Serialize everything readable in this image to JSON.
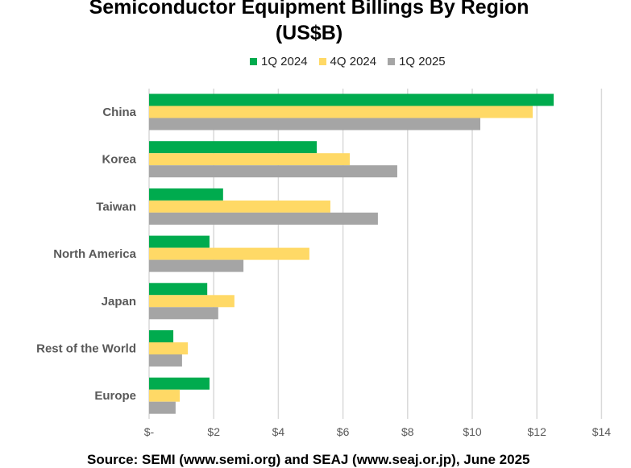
{
  "chart_data": {
    "type": "bar",
    "orientation": "horizontal",
    "title": "Semiconductor Equipment Billings By Region",
    "subtitle": "(US$B)",
    "categories": [
      "China",
      "Korea",
      "Taiwan",
      "North America",
      "Japan",
      "Rest of the World",
      "Europe"
    ],
    "series": [
      {
        "name": "1Q 2024",
        "color": "#00ab4e",
        "values": [
          12.52,
          5.19,
          2.29,
          1.87,
          1.8,
          0.75,
          1.87
        ]
      },
      {
        "name": "4Q 2024",
        "color": "#ffd966",
        "values": [
          11.87,
          6.21,
          5.61,
          4.96,
          2.64,
          1.2,
          0.95
        ]
      },
      {
        "name": "1Q 2025",
        "color": "#a5a5a5",
        "values": [
          10.25,
          7.68,
          7.08,
          2.92,
          2.14,
          1.02,
          0.82
        ]
      }
    ],
    "xlim": [
      0,
      14
    ],
    "xticks": [
      0,
      2,
      4,
      6,
      8,
      10,
      12,
      14
    ],
    "xtick_labels": [
      "$-",
      "$2",
      "$4",
      "$6",
      "$8",
      "$10",
      "$12",
      "$14"
    ],
    "grid": true,
    "legend_position": "top"
  },
  "source": "Source: SEMI (www.semi.org) and SEAJ (www.seaj.or.jp), June 2025"
}
